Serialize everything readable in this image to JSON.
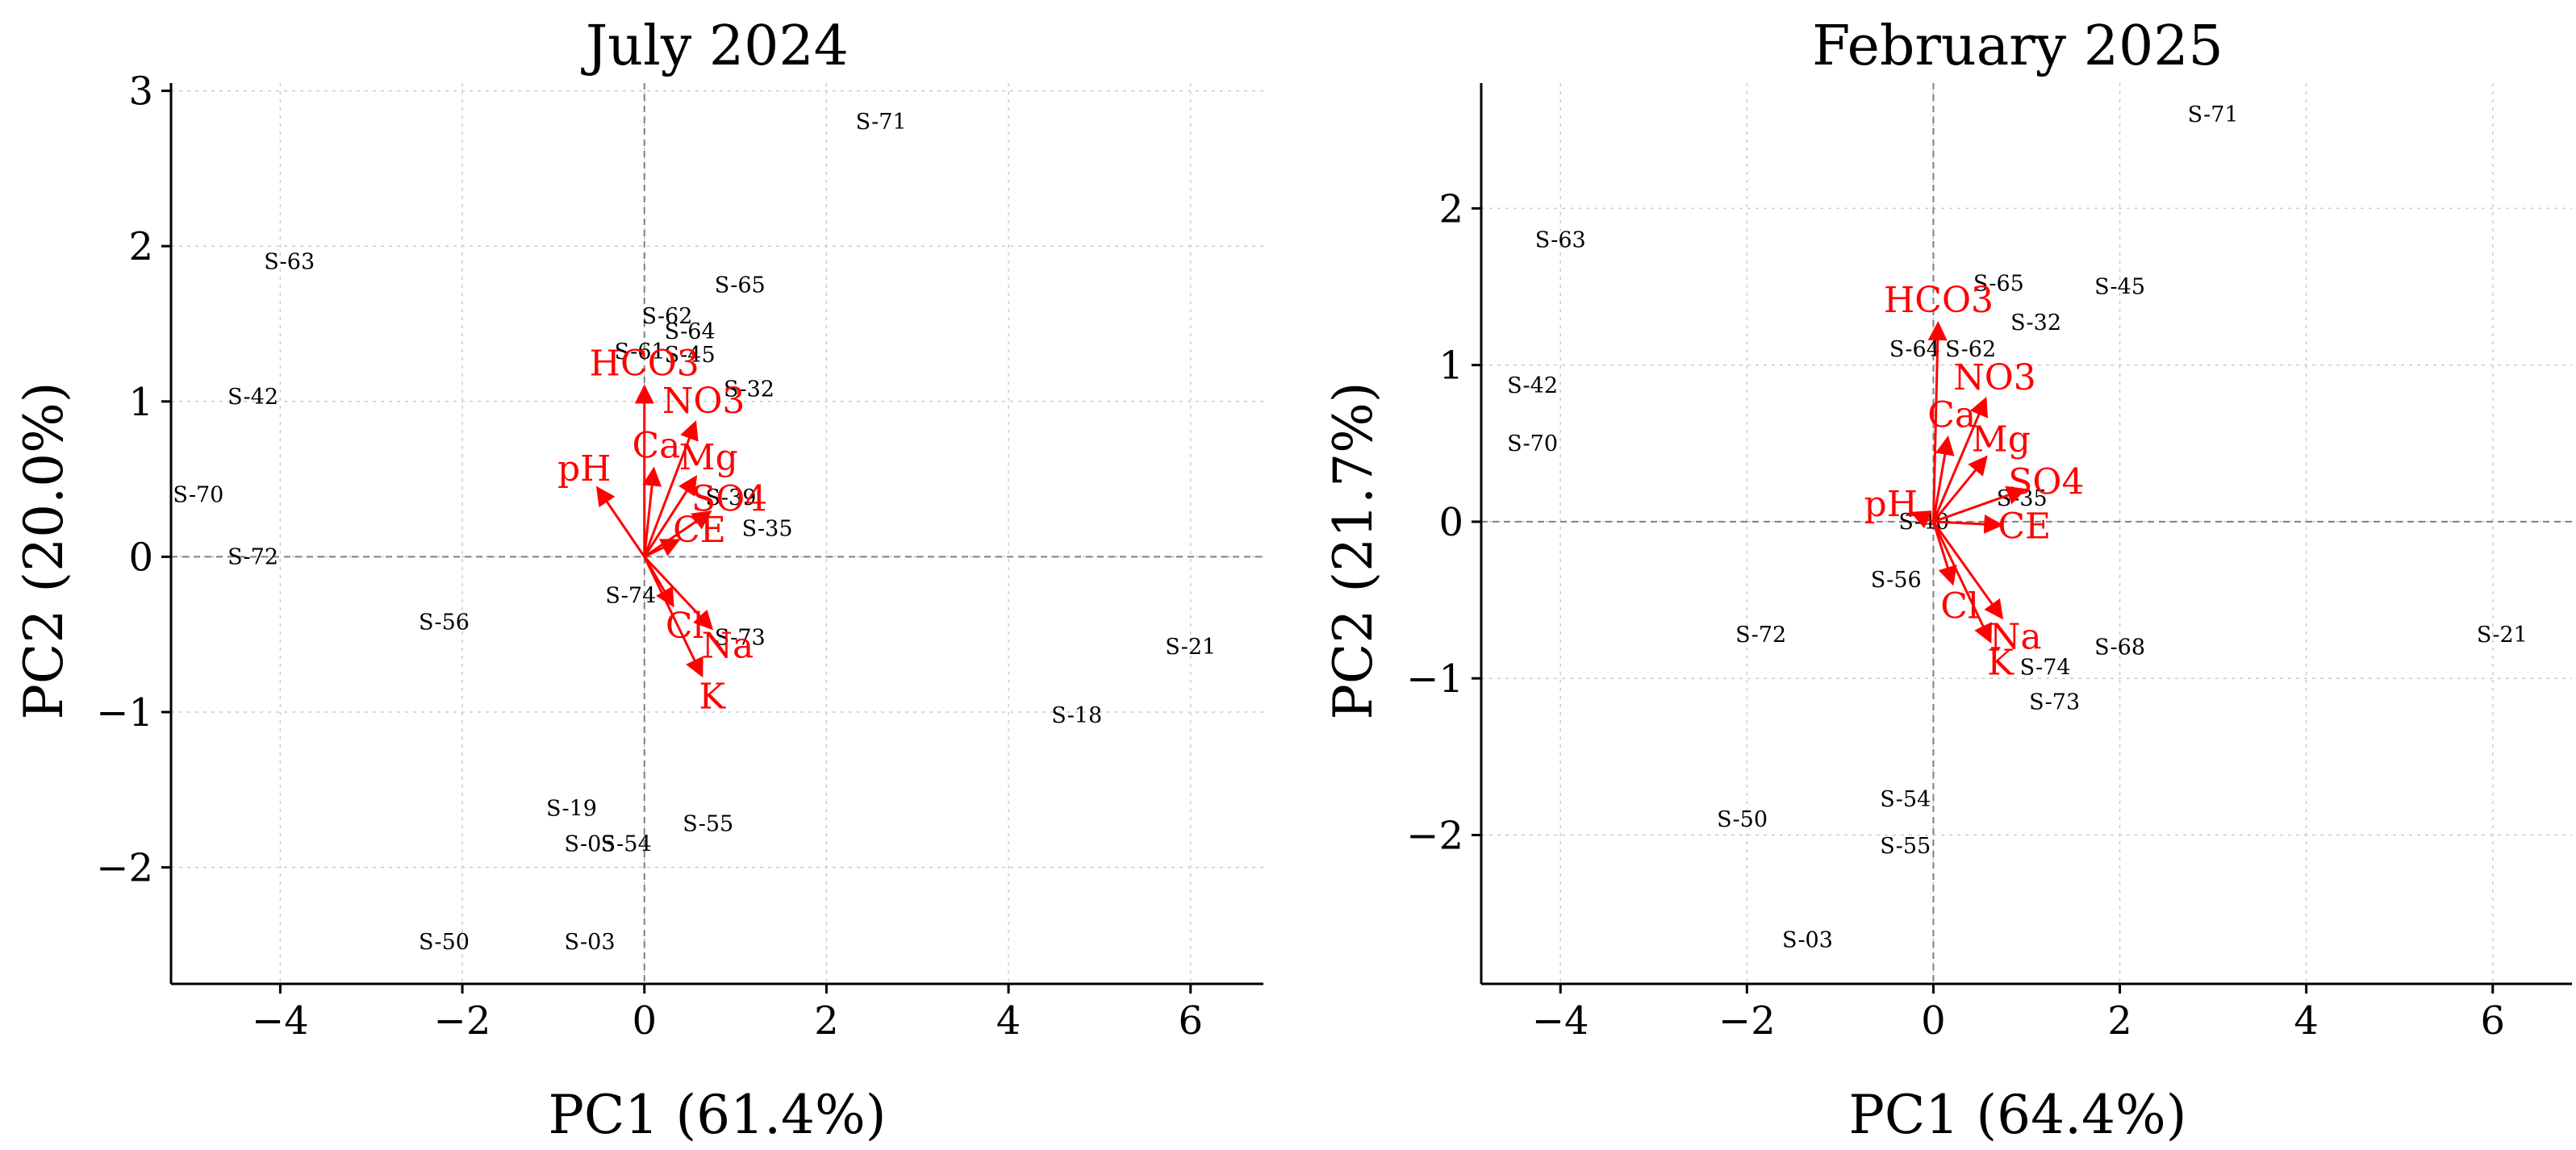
{
  "chart_data": [
    {
      "type": "scatter",
      "subtype": "pca-biplot",
      "title": "July 2024",
      "xlabel": "PC1 (61.4%)",
      "ylabel": "PC2 (20.0%)",
      "xlim": [
        -5.2,
        6.8
      ],
      "ylim": [
        -2.75,
        3.05
      ],
      "xticks": [
        -4,
        -2,
        0,
        2,
        4,
        6
      ],
      "xtick_labels": [
        "−4",
        "−2",
        "0",
        "2",
        "4",
        "6"
      ],
      "yticks": [
        -2,
        -1,
        0,
        1,
        2,
        3
      ],
      "ytick_labels": [
        "−2",
        "−1",
        "0",
        "1",
        "2",
        "3"
      ],
      "grid": true,
      "points": [
        {
          "label": "S-71",
          "x": 2.6,
          "y": 2.8
        },
        {
          "label": "S-63",
          "x": -3.9,
          "y": 1.9
        },
        {
          "label": "S-65",
          "x": 1.05,
          "y": 1.75
        },
        {
          "label": "S-62",
          "x": 0.25,
          "y": 1.55
        },
        {
          "label": "S-64",
          "x": 0.5,
          "y": 1.45
        },
        {
          "label": "S-61",
          "x": -0.05,
          "y": 1.32
        },
        {
          "label": "S-45",
          "x": 0.5,
          "y": 1.3
        },
        {
          "label": "S-42",
          "x": -4.3,
          "y": 1.03
        },
        {
          "label": "S-32",
          "x": 1.15,
          "y": 1.08
        },
        {
          "label": "S-70",
          "x": -4.9,
          "y": 0.4
        },
        {
          "label": "S-39",
          "x": 0.95,
          "y": 0.38
        },
        {
          "label": "S-35",
          "x": 1.35,
          "y": 0.18
        },
        {
          "label": "S-72",
          "x": -4.3,
          "y": 0.0
        },
        {
          "label": "S-74",
          "x": -0.15,
          "y": -0.25
        },
        {
          "label": "S-56",
          "x": -2.2,
          "y": -0.42
        },
        {
          "label": "S-73",
          "x": 1.05,
          "y": -0.52
        },
        {
          "label": "S-21",
          "x": 6.0,
          "y": -0.58
        },
        {
          "label": "S-18",
          "x": 4.75,
          "y": -1.02
        },
        {
          "label": "S-19",
          "x": -0.8,
          "y": -1.62
        },
        {
          "label": "S-55",
          "x": 0.7,
          "y": -1.72
        },
        {
          "label": "S-05",
          "x": -0.6,
          "y": -1.85
        },
        {
          "label": "S-54",
          "x": -0.2,
          "y": -1.85
        },
        {
          "label": "S-50",
          "x": -2.2,
          "y": -2.48
        },
        {
          "label": "S-03",
          "x": -0.6,
          "y": -2.48
        }
      ],
      "loadings": [
        {
          "label": "HCO3",
          "x": 0.0,
          "y": 1.08
        },
        {
          "label": "NO3",
          "x": 0.55,
          "y": 0.85
        },
        {
          "label": "Ca",
          "x": 0.1,
          "y": 0.55
        },
        {
          "label": "Mg",
          "x": 0.55,
          "y": 0.5
        },
        {
          "label": "pH",
          "x": -0.5,
          "y": 0.43
        },
        {
          "label": "CE",
          "x": 0.35,
          "y": 0.1
        },
        {
          "label": "SO4",
          "x": 0.7,
          "y": 0.28
        },
        {
          "label": "Cl",
          "x": 0.3,
          "y": -0.3
        },
        {
          "label": "Na",
          "x": 0.72,
          "y": -0.45
        },
        {
          "label": "K",
          "x": 0.62,
          "y": -0.75
        }
      ]
    },
    {
      "type": "scatter",
      "subtype": "pca-biplot",
      "title": "February 2025",
      "xlabel": "PC1 (64.4%)",
      "ylabel": "PC2 (21.7%)",
      "xlim": [
        -4.85,
        6.85
      ],
      "ylim": [
        -2.95,
        2.8
      ],
      "xticks": [
        -4,
        -2,
        0,
        2,
        4,
        6
      ],
      "xtick_labels": [
        "−4",
        "−2",
        "0",
        "2",
        "4",
        "6"
      ],
      "yticks": [
        -2,
        -1,
        0,
        1,
        2
      ],
      "ytick_labels": [
        "−2",
        "−1",
        "0",
        "1",
        "2"
      ],
      "grid": true,
      "points": [
        {
          "label": "S-71",
          "x": 3.0,
          "y": 2.6
        },
        {
          "label": "S-63",
          "x": -4.0,
          "y": 1.8
        },
        {
          "label": "S-65",
          "x": 0.7,
          "y": 1.52
        },
        {
          "label": "S-45",
          "x": 2.0,
          "y": 1.5
        },
        {
          "label": "S-32",
          "x": 1.1,
          "y": 1.27
        },
        {
          "label": "S-64",
          "x": -0.2,
          "y": 1.1
        },
        {
          "label": "S-62",
          "x": 0.4,
          "y": 1.1
        },
        {
          "label": "S-42",
          "x": -4.3,
          "y": 0.87
        },
        {
          "label": "S-70",
          "x": -4.3,
          "y": 0.5
        },
        {
          "label": "S-35",
          "x": 0.95,
          "y": 0.15
        },
        {
          "label": "S-40",
          "x": -0.1,
          "y": 0.0
        },
        {
          "label": "S-56",
          "x": -0.4,
          "y": -0.37
        },
        {
          "label": "S-72",
          "x": -1.85,
          "y": -0.72
        },
        {
          "label": "S-68",
          "x": 2.0,
          "y": -0.8
        },
        {
          "label": "S-74",
          "x": 1.2,
          "y": -0.93
        },
        {
          "label": "S-73",
          "x": 1.3,
          "y": -1.15
        },
        {
          "label": "S-21",
          "x": 6.1,
          "y": -0.72
        },
        {
          "label": "S-54",
          "x": -0.3,
          "y": -1.77
        },
        {
          "label": "S-50",
          "x": -2.05,
          "y": -1.9
        },
        {
          "label": "S-55",
          "x": -0.3,
          "y": -2.07
        },
        {
          "label": "S-03",
          "x": -1.35,
          "y": -2.67
        }
      ],
      "loadings": [
        {
          "label": "HCO3",
          "x": 0.05,
          "y": 1.25
        },
        {
          "label": "NO3",
          "x": 0.55,
          "y": 0.77
        },
        {
          "label": "Ca",
          "x": 0.15,
          "y": 0.52
        },
        {
          "label": "Mg",
          "x": 0.55,
          "y": 0.4
        },
        {
          "label": "SO4",
          "x": 0.95,
          "y": 0.2
        },
        {
          "label": "pH",
          "x": -0.2,
          "y": 0.05
        },
        {
          "label": "CE",
          "x": 0.7,
          "y": -0.02
        },
        {
          "label": "Cl",
          "x": 0.2,
          "y": -0.38
        },
        {
          "label": "Na",
          "x": 0.72,
          "y": -0.6
        },
        {
          "label": "K",
          "x": 0.6,
          "y": -0.75
        }
      ]
    }
  ]
}
